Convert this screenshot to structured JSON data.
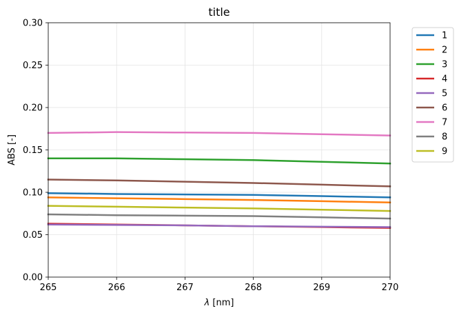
{
  "chart_data": {
    "type": "line",
    "title": "title",
    "xlabel": "λ [nm]",
    "xlabel_italic_part": "λ",
    "xlabel_rest": " [nm]",
    "ylabel": "ABS [-]",
    "xlim": [
      265,
      270
    ],
    "ylim": [
      0.0,
      0.3
    ],
    "xticks": [
      "265",
      "266",
      "267",
      "268",
      "269",
      "270"
    ],
    "yticks": [
      "0.00",
      "0.05",
      "0.10",
      "0.15",
      "0.20",
      "0.25",
      "0.30"
    ],
    "grid": true,
    "legend_position": "outside-top-right",
    "x": [
      265,
      266,
      267,
      268,
      269,
      270
    ],
    "series": [
      {
        "name": "1",
        "color": "#1f77b4",
        "values": [
          0.099,
          0.098,
          0.0975,
          0.097,
          0.0955,
          0.094
        ]
      },
      {
        "name": "2",
        "color": "#ff7f0e",
        "values": [
          0.094,
          0.093,
          0.092,
          0.091,
          0.0895,
          0.088
        ]
      },
      {
        "name": "3",
        "color": "#2ca02c",
        "values": [
          0.14,
          0.14,
          0.139,
          0.138,
          0.136,
          0.134
        ]
      },
      {
        "name": "4",
        "color": "#d62728",
        "values": [
          0.063,
          0.062,
          0.061,
          0.06,
          0.059,
          0.058
        ]
      },
      {
        "name": "5",
        "color": "#9467bd",
        "values": [
          0.062,
          0.0615,
          0.061,
          0.06,
          0.0595,
          0.059
        ]
      },
      {
        "name": "6",
        "color": "#8c564b",
        "values": [
          0.115,
          0.114,
          0.1125,
          0.111,
          0.109,
          0.107
        ]
      },
      {
        "name": "7",
        "color": "#e377c2",
        "values": [
          0.17,
          0.171,
          0.1705,
          0.17,
          0.1685,
          0.167
        ]
      },
      {
        "name": "8",
        "color": "#7f7f7f",
        "values": [
          0.074,
          0.073,
          0.0725,
          0.072,
          0.0705,
          0.069
        ]
      },
      {
        "name": "9",
        "color": "#bcbd22",
        "values": [
          0.084,
          0.083,
          0.082,
          0.081,
          0.0795,
          0.078
        ]
      }
    ]
  }
}
